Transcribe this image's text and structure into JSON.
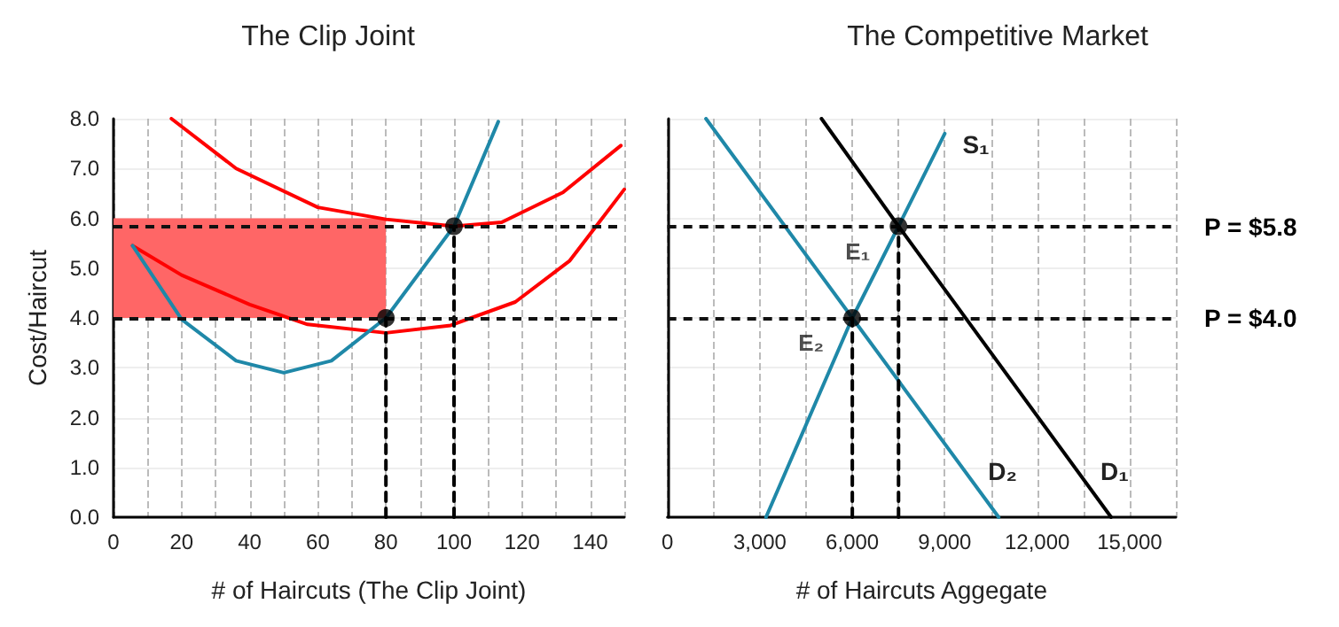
{
  "chart_data": [
    {
      "type": "line",
      "title": "The Clip Joint",
      "xlabel": "# of Haircuts (The Clip Joint)",
      "ylabel": "Cost/Haircut",
      "xlim": [
        0,
        150
      ],
      "xticks": [
        0,
        {
          "value": 10,
          "label": null
        },
        20,
        {
          "value": 30,
          "label": null
        },
        40,
        {
          "value": 50,
          "label": null
        },
        60,
        {
          "value": 70,
          "label": null
        },
        80,
        {
          "value": 90,
          "label": null
        },
        100,
        {
          "value": 110,
          "label": null
        },
        120,
        {
          "value": 130,
          "label": null
        },
        140,
        {
          "value": 150,
          "label": null
        }
      ],
      "ylim": [
        0,
        8
      ],
      "yticks": [
        {
          "value": 0,
          "label": "0.0"
        },
        {
          "value": 1,
          "label": "1.0"
        },
        {
          "value": 2,
          "label": "2.0"
        },
        {
          "value": 3,
          "label": "3.0"
        },
        {
          "value": 4,
          "label": "4.0"
        },
        {
          "value": 5,
          "label": "5.0"
        },
        {
          "value": 6,
          "label": "6.0"
        },
        {
          "value": 7,
          "label": "7.0"
        },
        {
          "value": 8,
          "label": "8.0"
        }
      ],
      "grid": true,
      "ref_lines": [
        {
          "axis": "y",
          "value": 5.84,
          "color": "#111111",
          "line_style": "dashed"
        },
        {
          "axis": "y",
          "value": 4.0,
          "color": "#111111",
          "line_style": "dashed"
        }
      ],
      "series": [
        {
          "type": "area",
          "color": "#ff6666",
          "x": [
            0,
            80
          ],
          "lower": [
            4,
            4
          ],
          "upper": [
            6,
            6
          ],
          "values": [
            null,
            null
          ]
        },
        {
          "color": "#ff0000",
          "x": [
            17,
            36,
            60,
            80,
            100,
            114,
            132,
            149
          ],
          "values": [
            8.0,
            7.0,
            6.22,
            5.98,
            5.84,
            5.92,
            6.52,
            7.46
          ]
        },
        {
          "color": "#ff0000",
          "x": [
            5.6,
            20,
            40,
            57,
            80,
            99,
            118,
            134,
            150
          ],
          "values": [
            5.45,
            4.86,
            4.27,
            3.87,
            3.7,
            3.85,
            4.32,
            5.15,
            6.58
          ]
        },
        {
          "color": "#1f88a8",
          "x": [
            5.6,
            20,
            36,
            50,
            64,
            80,
            100,
            113
          ],
          "values": [
            5.45,
            3.97,
            3.14,
            2.9,
            3.14,
            4.0,
            5.84,
            7.94
          ]
        },
        {
          "line_style": "dashed",
          "color": "#000000",
          "x": [
            80,
            80
          ],
          "values": [
            0,
            4.0
          ]
        },
        {
          "line_style": "dashed",
          "color": "#000000",
          "x": [
            100,
            100
          ],
          "values": [
            0,
            5.84
          ]
        },
        {
          "type": "scatter",
          "marker": "circle",
          "color": "#000000",
          "x": [
            80,
            100
          ],
          "values": [
            4.0,
            5.84
          ]
        }
      ]
    },
    {
      "type": "line",
      "title": "The Competitive Market",
      "xlabel": "# of Haircuts Aggegate",
      "xlim": [
        0,
        16500
      ],
      "xticks": [
        0,
        {
          "value": 1500,
          "label": null
        },
        {
          "value": 3000,
          "label": "3,000"
        },
        {
          "value": 4500,
          "label": null
        },
        {
          "value": 6000,
          "label": "6,000"
        },
        {
          "value": 7500,
          "label": null
        },
        {
          "value": 9000,
          "label": "9,000"
        },
        {
          "value": 10500,
          "label": null
        },
        {
          "value": 12000,
          "label": "12,000"
        },
        {
          "value": 13500,
          "label": null
        },
        {
          "value": 15000,
          "label": "15,000"
        },
        {
          "value": 16500,
          "label": null
        }
      ],
      "ylim": [
        0,
        8
      ],
      "yticks": [
        0,
        1,
        2,
        3,
        4,
        5,
        6,
        7,
        8
      ],
      "tick_labels": "x",
      "grid": true,
      "ref_lines": [
        {
          "axis": "y",
          "value": 5.84,
          "label": "P = $5.8",
          "color": "#111111",
          "line_style": "dashed"
        },
        {
          "axis": "y",
          "value": 4.0,
          "label": "P = $4.0",
          "color": "#111111",
          "line_style": "dashed"
        }
      ],
      "annotations": [
        {
          "text": "E₁",
          "x": 7500,
          "y": 5.84
        },
        {
          "text": "E₂",
          "x": 6000,
          "y": 4.0
        }
      ],
      "series": [
        {
          "name": "S₁",
          "color": "#1f88a8",
          "x": [
            3200,
            6000,
            7500,
            9000
          ],
          "values": [
            0,
            4.0,
            5.84,
            7.7
          ]
        },
        {
          "name": "D₂",
          "color": "#1f88a8",
          "x": [
            1250,
            6000,
            10750
          ],
          "values": [
            8,
            4.0,
            0
          ]
        },
        {
          "name": "D₁",
          "color": "#000000",
          "x": [
            5000,
            7500,
            14400
          ],
          "values": [
            8,
            5.84,
            0
          ]
        },
        {
          "line_style": "dashed",
          "color": "#000000",
          "x": [
            6000,
            6000
          ],
          "values": [
            0,
            4.0
          ]
        },
        {
          "line_style": "dashed",
          "color": "#000000",
          "x": [
            7500,
            7500
          ],
          "values": [
            0,
            5.84
          ]
        },
        {
          "type": "scatter",
          "marker": "circle",
          "color": "#000000",
          "x": [
            6000,
            7500
          ],
          "values": [
            4.0,
            5.84
          ]
        }
      ]
    }
  ]
}
